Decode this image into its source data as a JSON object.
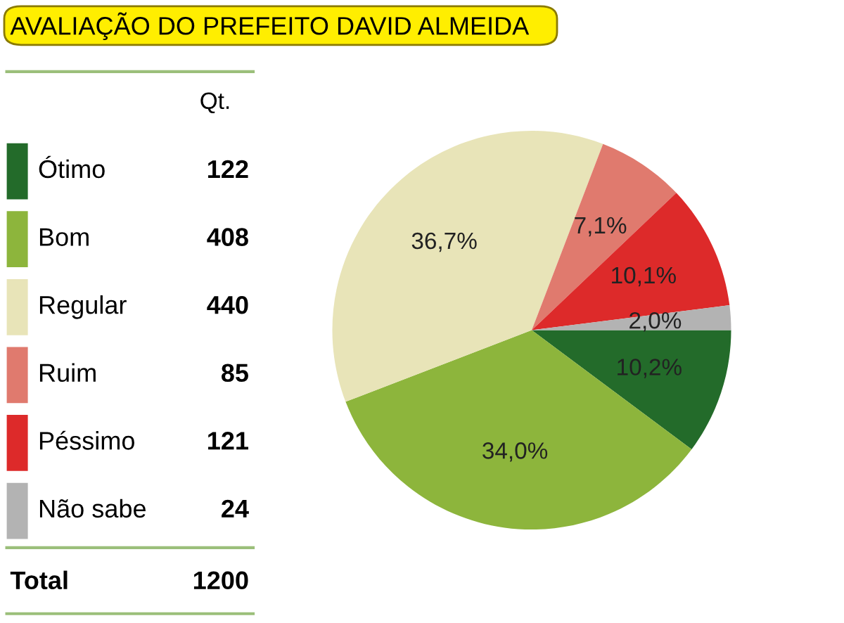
{
  "chart_data": {
    "type": "pie",
    "title": "AVALIAÇÃO DO PREFEITO DAVID ALMEIDA",
    "legend_title": "Qt.",
    "legend": "left",
    "categories": [
      "Ótimo",
      "Bom",
      "Regular",
      "Ruim",
      "Péssimo",
      "Não sabe"
    ],
    "values": [
      10.2,
      34.0,
      36.7,
      7.1,
      10.1,
      2.0
    ],
    "value_labels": [
      "10,2%",
      "34,0%",
      "36,7%",
      "7,1%",
      "10,1%",
      "2,0%"
    ],
    "colors": [
      "#236b2a",
      "#8db53c",
      "#e8e4b8",
      "#e07a6e",
      "#dd2a2a",
      "#b3b3b3"
    ],
    "annotations": [
      "122",
      "408",
      "440",
      "85",
      "121",
      "24",
      "Total",
      "1200"
    ]
  }
}
